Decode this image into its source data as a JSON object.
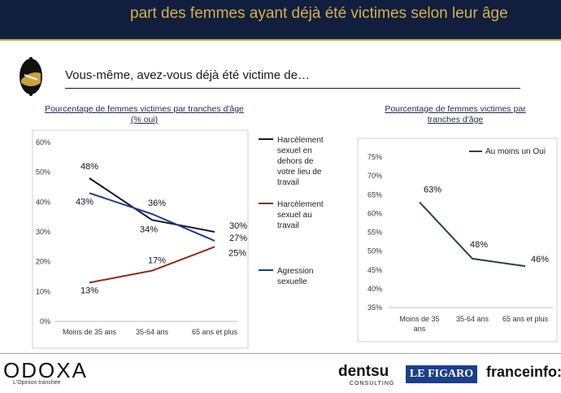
{
  "header": {
    "title": "part des femmes ayant déjà été victimes selon leur âge"
  },
  "question": "Vous-même, avez-vous déjà été victime de…",
  "left_chart": {
    "subtitle_line1": "Pourcentage de femmes victimes par tranches d'âge",
    "subtitle_line2": "(% oui)"
  },
  "right_chart": {
    "subtitle_line1": "Pourcentage de femmes victimes par",
    "subtitle_line2": "tranches d'âge"
  },
  "footer": {
    "odoxa": "ODOXA",
    "odoxa_tagline": "L'Opinion tranchée",
    "dentsu": "dentsu",
    "dentsu_sub": "CONSULTING",
    "figaro": "LE FIGARO",
    "franceinfo": "franceinfo:"
  },
  "colors": {
    "header_bg": "#0f1f3d",
    "gold": "#c9a23a",
    "black_series": "#1a1a1a",
    "red_series": "#8b2c1a",
    "blue_series": "#1f3a8a",
    "green_series": "#1f4a3a"
  },
  "chart_data": [
    {
      "type": "line",
      "categories": [
        "Moins de 35 ans",
        "35-64 ans",
        "65 ans et plus"
      ],
      "ylim": [
        0,
        60
      ],
      "yticks": [
        0,
        10,
        20,
        30,
        40,
        50,
        60
      ],
      "tick_suffix": "%",
      "legend": "right",
      "series": [
        {
          "name": "Harcèlement sexuel en dehors de votre lieu de travail",
          "values": [
            48,
            34,
            30
          ],
          "labels": [
            "48%",
            "34%",
            "30%"
          ],
          "color": "#1a1a1a"
        },
        {
          "name": "Harcèlement sexuel au travail",
          "values": [
            13,
            17,
            25
          ],
          "labels": [
            "13%",
            "17%",
            "25%"
          ],
          "color": "#8b2c1a"
        },
        {
          "name": "Agression sexuelle",
          "values": [
            43,
            36,
            27
          ],
          "labels": [
            "43%",
            "36%",
            "27%"
          ],
          "color": "#1f3a8a"
        }
      ]
    },
    {
      "type": "line",
      "categories": [
        "Moins de 35 ans",
        "35-64 ans",
        "65 ans et plus"
      ],
      "ylim": [
        35,
        75
      ],
      "yticks": [
        35,
        40,
        45,
        50,
        55,
        60,
        65,
        70,
        75
      ],
      "tick_suffix": "%",
      "legend": "top",
      "series": [
        {
          "name": "Au moins un Oui",
          "values": [
            63,
            48,
            46
          ],
          "labels": [
            "63%",
            "48%",
            "46%"
          ],
          "color": "#1f4a3a"
        }
      ]
    }
  ]
}
